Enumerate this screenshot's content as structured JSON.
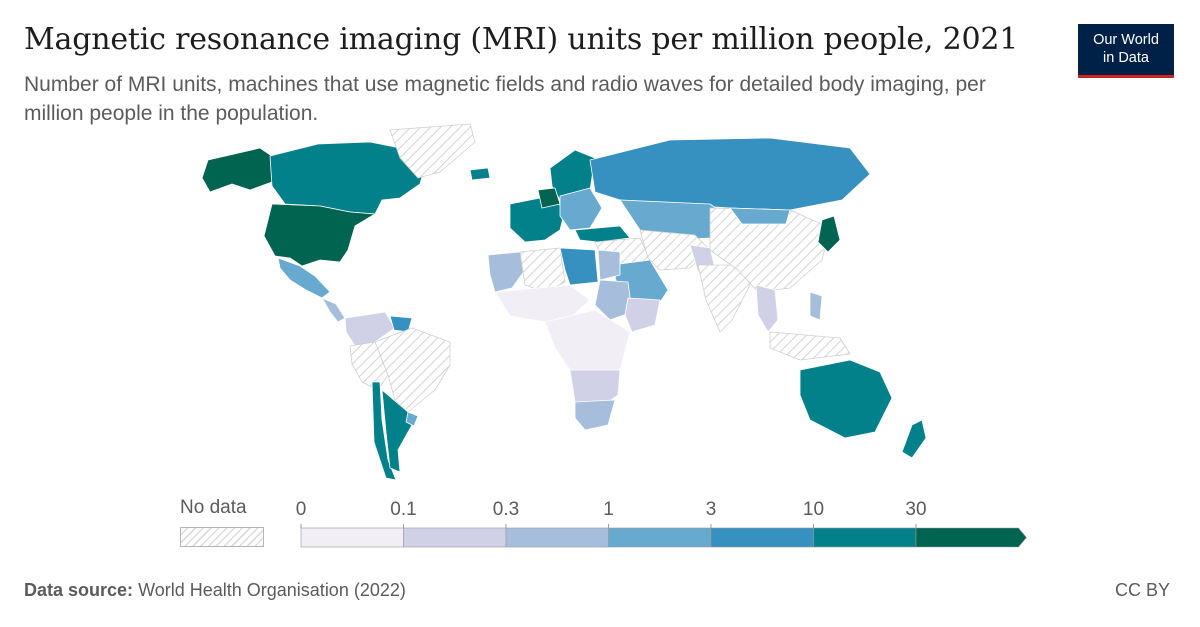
{
  "header": {
    "title": "Magnetic resonance imaging (MRI) units per million people, 2021",
    "subtitle": "Number of MRI units, machines that use magnetic fields and radio waves for detailed body imaging, per million people in the population."
  },
  "logo": {
    "line1": "Our World",
    "line2": "in Data"
  },
  "legend": {
    "no_data_label": "No data",
    "thresholds": [
      "0",
      "0.1",
      "0.3",
      "1",
      "3",
      "10",
      "30"
    ],
    "colors": [
      "#f1eef6",
      "#d0d1e6",
      "#a6bddb",
      "#67a9cf",
      "#3690c0",
      "#02818a",
      "#016450"
    ]
  },
  "footer": {
    "source_label": "Data source:",
    "source_value": "World Health Organisation (2022)",
    "license": "CC BY"
  },
  "map_data": {
    "year": 2021,
    "bins": [
      "0–0.1",
      "0.1–0.3",
      "0.3–1",
      "1–3",
      "3–10",
      "10–30",
      ">30"
    ],
    "regions": [
      {
        "name": "Alaska",
        "bin": 6
      },
      {
        "name": "Canada",
        "bin": 5
      },
      {
        "name": "United States",
        "bin": 6
      },
      {
        "name": "Mexico",
        "bin": 3
      },
      {
        "name": "Central America",
        "bin": 2
      },
      {
        "name": "Colombia & Venezuela",
        "bin": 1
      },
      {
        "name": "Guianas",
        "bin": 4
      },
      {
        "name": "Brazil",
        "bin": null
      },
      {
        "name": "Peru & Bolivia",
        "bin": null
      },
      {
        "name": "Chile",
        "bin": 5
      },
      {
        "name": "Argentina",
        "bin": 5
      },
      {
        "name": "Uruguay",
        "bin": 3
      },
      {
        "name": "Greenland",
        "bin": null
      },
      {
        "name": "Iceland",
        "bin": 5
      },
      {
        "name": "Scandinavia",
        "bin": 5
      },
      {
        "name": "Western Europe",
        "bin": 5
      },
      {
        "name": "Germany",
        "bin": 6
      },
      {
        "name": "Eastern Europe",
        "bin": 3
      },
      {
        "name": "Russia",
        "bin": 4
      },
      {
        "name": "Kazakhstan & Central Asia",
        "bin": 3
      },
      {
        "name": "Turkey",
        "bin": 5
      },
      {
        "name": "Middle East",
        "bin": null
      },
      {
        "name": "Arabian Peninsula",
        "bin": 3
      },
      {
        "name": "Iran & Afghanistan",
        "bin": null
      },
      {
        "name": "Pakistan",
        "bin": 1
      },
      {
        "name": "India",
        "bin": null
      },
      {
        "name": "China",
        "bin": null
      },
      {
        "name": "Mongolia",
        "bin": 3
      },
      {
        "name": "Japan",
        "bin": 6
      },
      {
        "name": "Southeast Asia",
        "bin": 1
      },
      {
        "name": "Indonesia",
        "bin": null
      },
      {
        "name": "Philippines",
        "bin": 2
      },
      {
        "name": "Morocco & Mauritania",
        "bin": 2
      },
      {
        "name": "Algeria",
        "bin": null
      },
      {
        "name": "Libya",
        "bin": 4
      },
      {
        "name": "Egypt",
        "bin": 2
      },
      {
        "name": "Sahel",
        "bin": 0
      },
      {
        "name": "Sudan",
        "bin": 2
      },
      {
        "name": "Ethiopia & Horn",
        "bin": 1
      },
      {
        "name": "Central Africa",
        "bin": 0
      },
      {
        "name": "Southern Africa",
        "bin": 1
      },
      {
        "name": "South Africa",
        "bin": 2
      },
      {
        "name": "Australia",
        "bin": 5
      },
      {
        "name": "New Zealand",
        "bin": 5
      }
    ]
  }
}
